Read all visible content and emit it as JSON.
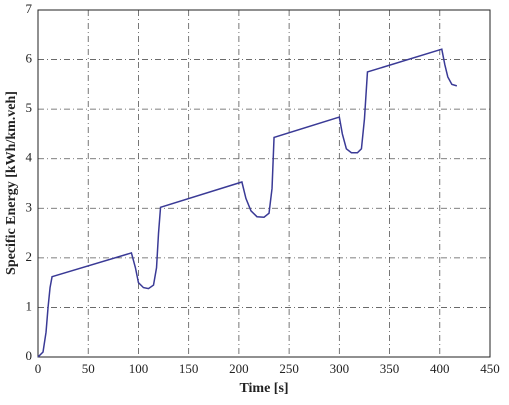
{
  "chart_data": {
    "type": "line",
    "x_label": "Time [s]",
    "y_label": "Specific Energy [kWh/km.veh]",
    "xlim": [
      0,
      450
    ],
    "xticks": [
      0,
      50,
      100,
      150,
      200,
      250,
      300,
      350,
      400,
      450
    ],
    "ylim": [
      0,
      7
    ],
    "yticks": [
      0,
      1,
      2,
      3,
      4,
      5,
      6,
      7
    ],
    "grid": true,
    "series": [
      {
        "color": "#3a3a96",
        "x": [
          0,
          5,
          8,
          10,
          12,
          14,
          93,
          97,
          100,
          105,
          110,
          115,
          118,
          120,
          122,
          203,
          207,
          212,
          218,
          225,
          230,
          233,
          235,
          300,
          303,
          307,
          312,
          318,
          322,
          325,
          328,
          402,
          405,
          408,
          412,
          417
        ],
        "values": [
          0,
          0.1,
          0.5,
          1.0,
          1.4,
          1.62,
          2.1,
          1.8,
          1.5,
          1.4,
          1.38,
          1.45,
          1.8,
          2.5,
          3.02,
          3.53,
          3.2,
          2.95,
          2.83,
          2.82,
          2.9,
          3.4,
          4.43,
          4.84,
          4.5,
          4.2,
          4.12,
          4.12,
          4.2,
          4.8,
          5.75,
          6.21,
          5.9,
          5.65,
          5.5,
          5.47
        ]
      }
    ]
  }
}
